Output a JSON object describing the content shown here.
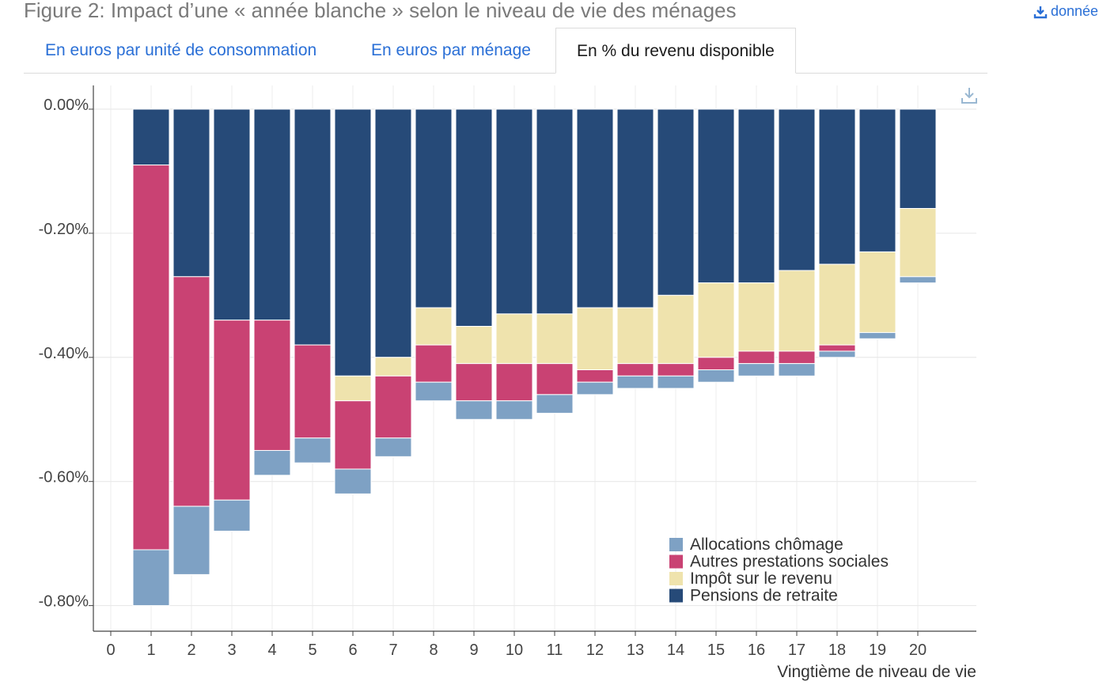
{
  "header": {
    "title": "Figure 2: Impact d’une « année blanche » selon le niveau de vie des ménages",
    "data_link": "donnée"
  },
  "tabs": [
    {
      "label": "En euros par unité de consommation",
      "active": false
    },
    {
      "label": "En euros par ménage",
      "active": false
    },
    {
      "label": "En % du revenu disponible",
      "active": true
    }
  ],
  "icons": {
    "download": "download-icon",
    "chart_download": "chart-download-icon"
  },
  "chart_data": {
    "type": "bar",
    "stacked": true,
    "xlabel": "Vingtième de niveau de vie",
    "ylabel": "",
    "x_ticks": [
      "0",
      "1",
      "2",
      "3",
      "4",
      "5",
      "6",
      "7",
      "8",
      "9",
      "10",
      "11",
      "12",
      "13",
      "14",
      "15",
      "16",
      "17",
      "18",
      "19",
      "20"
    ],
    "categories": [
      "1",
      "2",
      "3",
      "4",
      "5",
      "6",
      "7",
      "8",
      "9",
      "10",
      "11",
      "12",
      "13",
      "14",
      "15",
      "16",
      "17",
      "18",
      "19",
      "20"
    ],
    "ylim": [
      -0.84,
      0.01
    ],
    "y_ticks": [
      0,
      -0.2,
      -0.4,
      -0.6,
      -0.8
    ],
    "y_tick_labels": [
      "0.00%",
      "-0.20%",
      "-0.40%",
      "-0.60%",
      "-0.80%"
    ],
    "grid": true,
    "legend_position": "bottom-right",
    "series": [
      {
        "name": "Pensions de retraite",
        "color": "#264a78",
        "values": [
          -0.09,
          -0.27,
          -0.34,
          -0.34,
          -0.38,
          -0.43,
          -0.4,
          -0.32,
          -0.35,
          -0.33,
          -0.33,
          -0.32,
          -0.32,
          -0.3,
          -0.28,
          -0.28,
          -0.26,
          -0.25,
          -0.23,
          -0.16
        ]
      },
      {
        "name": "Impôt sur le revenu",
        "color": "#efe3ad",
        "values": [
          0,
          0,
          0,
          0,
          0,
          -0.04,
          -0.03,
          -0.06,
          -0.06,
          -0.08,
          -0.08,
          -0.1,
          -0.09,
          -0.11,
          -0.12,
          -0.11,
          -0.13,
          -0.13,
          -0.13,
          -0.11
        ]
      },
      {
        "name": "Autres prestations sociales",
        "color": "#c94273",
        "values": [
          -0.62,
          -0.37,
          -0.29,
          -0.21,
          -0.15,
          -0.11,
          -0.1,
          -0.06,
          -0.06,
          -0.06,
          -0.05,
          -0.02,
          -0.02,
          -0.02,
          -0.02,
          -0.02,
          -0.02,
          -0.01,
          0,
          0
        ]
      },
      {
        "name": "Allocations chômage",
        "color": "#7ea1c4",
        "values": [
          -0.09,
          -0.11,
          -0.05,
          -0.04,
          -0.04,
          -0.04,
          -0.03,
          -0.03,
          -0.03,
          -0.03,
          -0.03,
          -0.02,
          -0.02,
          -0.02,
          -0.02,
          -0.02,
          -0.02,
          -0.01,
          -0.01,
          -0.01
        ]
      }
    ],
    "legend_order": [
      "Allocations chômage",
      "Autres prestations sociales",
      "Impôt sur le revenu",
      "Pensions de retraite"
    ]
  }
}
